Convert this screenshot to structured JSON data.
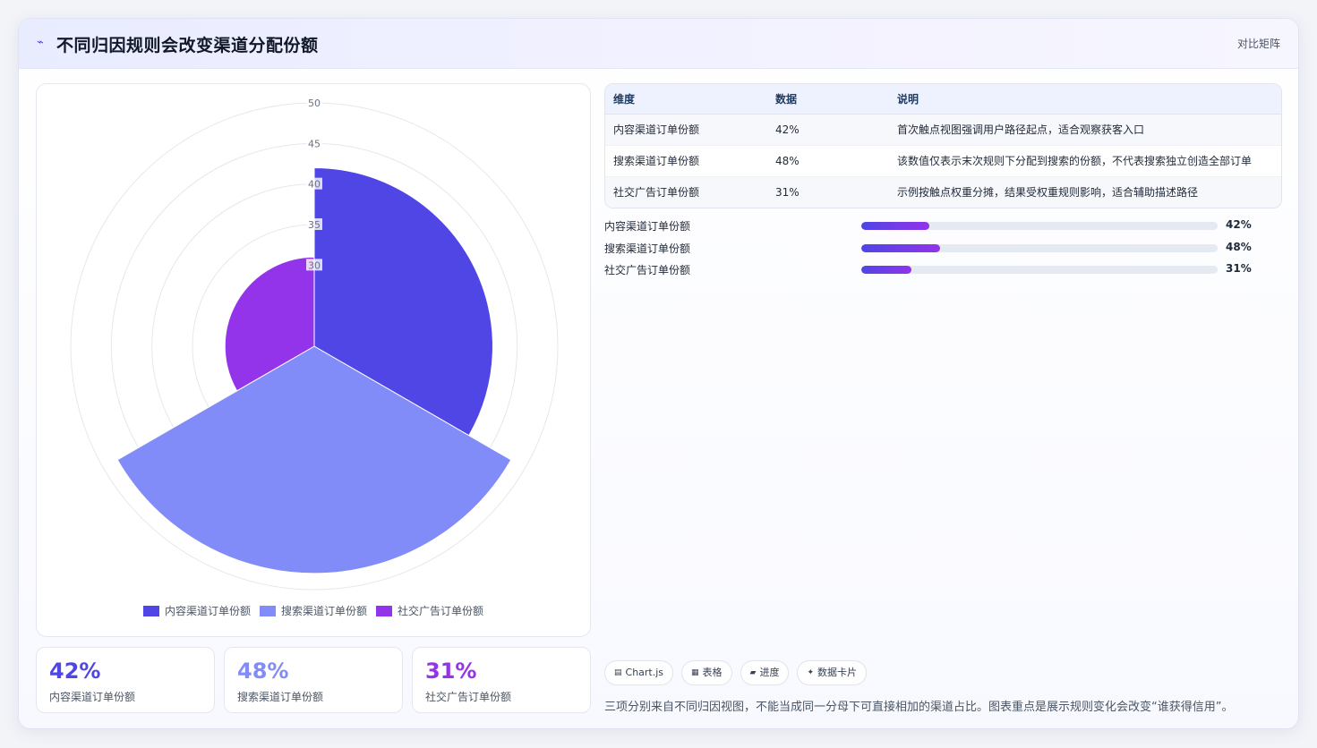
{
  "header": {
    "icon": "pulse-icon",
    "title": "不同归因规则会改变渠道分配份额",
    "badge": "对比矩阵"
  },
  "colors": {
    "accent": "#4f46e5",
    "series": [
      "#4f46e5",
      "#818cf8",
      "#9333ea"
    ]
  },
  "chart_data": {
    "type": "polarArea",
    "categories": [
      "内容渠道订单份额",
      "搜索渠道订单份额",
      "社交广告订单份额"
    ],
    "values": [
      42,
      48,
      31
    ],
    "radial_ticks": [
      "30",
      "35",
      "40",
      "45",
      "50"
    ],
    "rmin": 20,
    "rmax": 50,
    "legend": "bottom"
  },
  "legend": {
    "items": [
      "内容渠道订单份额",
      "搜索渠道订单份额",
      "社交广告订单份额"
    ]
  },
  "stats": [
    {
      "value": "42%",
      "label": "内容渠道订单份额"
    },
    {
      "value": "48%",
      "label": "搜索渠道订单份额"
    },
    {
      "value": "31%",
      "label": "社交广告订单份额"
    }
  ],
  "table": {
    "headers": [
      "维度",
      "数据",
      "说明"
    ],
    "rows": [
      [
        "内容渠道订单份额",
        "42%",
        "首次触点视图强调用户路径起点，适合观察获客入口"
      ],
      [
        "搜索渠道订单份额",
        "48%",
        "该数值仅表示末次规则下分配到搜索的份额，不代表搜索独立创造全部订单"
      ],
      [
        "社交广告订单份额",
        "31%",
        "示例按触点权重分摊，结果受权重规则影响，适合辅助描述路径"
      ]
    ]
  },
  "bars": [
    {
      "label": "内容渠道订单份额",
      "value": "42%",
      "fraction": 0.19
    },
    {
      "label": "搜索渠道订单份额",
      "value": "48%",
      "fraction": 0.22
    },
    {
      "label": "社交广告订单份额",
      "value": "31%",
      "fraction": 0.14
    }
  ],
  "chips": [
    {
      "icon": "chart-icon",
      "glyph": "▤",
      "label": "Chart.js"
    },
    {
      "icon": "table-icon",
      "glyph": "▦",
      "label": "表格"
    },
    {
      "icon": "progress-icon",
      "glyph": "▰",
      "label": "进度"
    },
    {
      "icon": "sparkle-icon",
      "glyph": "✦",
      "label": "数据卡片"
    }
  ],
  "footnote": "三项分别来自不同归因视图，不能当成同一分母下可直接相加的渠道占比。图表重点是展示规则变化会改变“谁获得信用”。"
}
